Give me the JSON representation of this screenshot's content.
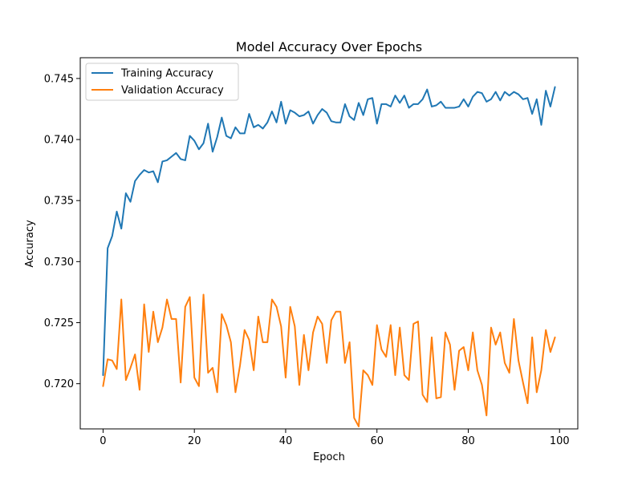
{
  "chart_data": {
    "type": "line",
    "title": "Model Accuracy Over Epochs",
    "xlabel": "Epoch",
    "ylabel": "Accuracy",
    "xlim": [
      -5,
      104
    ],
    "ylim": [
      0.7163,
      0.7467
    ],
    "x_ticks": [
      0,
      20,
      40,
      60,
      80,
      100
    ],
    "y_ticks": [
      0.72,
      0.725,
      0.73,
      0.735,
      0.74,
      0.745
    ],
    "y_tick_labels": [
      "0.720",
      "0.725",
      "0.730",
      "0.735",
      "0.740",
      "0.745"
    ],
    "grid": false,
    "legend_position": "upper-left",
    "x": [
      0,
      1,
      2,
      3,
      4,
      5,
      6,
      7,
      8,
      9,
      10,
      11,
      12,
      13,
      14,
      15,
      16,
      17,
      18,
      19,
      20,
      21,
      22,
      23,
      24,
      25,
      26,
      27,
      28,
      29,
      30,
      31,
      32,
      33,
      34,
      35,
      36,
      37,
      38,
      39,
      40,
      41,
      42,
      43,
      44,
      45,
      46,
      47,
      48,
      49,
      50,
      51,
      52,
      53,
      54,
      55,
      56,
      57,
      58,
      59,
      60,
      61,
      62,
      63,
      64,
      65,
      66,
      67,
      68,
      69,
      70,
      71,
      72,
      73,
      74,
      75,
      76,
      77,
      78,
      79,
      80,
      81,
      82,
      83,
      84,
      85,
      86,
      87,
      88,
      89,
      90,
      91,
      92,
      93,
      94,
      95,
      96,
      97,
      98,
      99
    ],
    "series": [
      {
        "name": "Training Accuracy",
        "color": "#1f77b4",
        "values": [
          0.7207,
          0.7311,
          0.7321,
          0.7341,
          0.7327,
          0.7356,
          0.7349,
          0.7366,
          0.7371,
          0.7375,
          0.7373,
          0.7374,
          0.7365,
          0.7382,
          0.7383,
          0.7386,
          0.7389,
          0.7384,
          0.7383,
          0.7403,
          0.7399,
          0.7392,
          0.7397,
          0.7413,
          0.739,
          0.7402,
          0.7418,
          0.7403,
          0.7401,
          0.741,
          0.7405,
          0.7405,
          0.7421,
          0.741,
          0.7412,
          0.7409,
          0.7414,
          0.7423,
          0.7414,
          0.7431,
          0.7413,
          0.7424,
          0.7422,
          0.7419,
          0.742,
          0.7423,
          0.7413,
          0.742,
          0.7425,
          0.7422,
          0.7415,
          0.7414,
          0.7414,
          0.7429,
          0.7419,
          0.7416,
          0.743,
          0.742,
          0.7433,
          0.7434,
          0.7413,
          0.7429,
          0.7429,
          0.7427,
          0.7436,
          0.743,
          0.7436,
          0.7426,
          0.7429,
          0.7429,
          0.7433,
          0.7441,
          0.7427,
          0.7428,
          0.7431,
          0.7426,
          0.7426,
          0.7426,
          0.7427,
          0.7433,
          0.7427,
          0.7435,
          0.7439,
          0.7438,
          0.7431,
          0.7433,
          0.7439,
          0.7432,
          0.7439,
          0.7436,
          0.7439,
          0.7437,
          0.7433,
          0.7434,
          0.7421,
          0.7433,
          0.7412,
          0.744,
          0.7427,
          0.7443
        ]
      },
      {
        "name": "Validation Accuracy",
        "color": "#ff7f0e",
        "values": [
          0.7198,
          0.722,
          0.7219,
          0.7212,
          0.7269,
          0.7203,
          0.7213,
          0.7224,
          0.7195,
          0.7265,
          0.7226,
          0.7259,
          0.7234,
          0.7246,
          0.7269,
          0.7253,
          0.7253,
          0.7201,
          0.7263,
          0.7271,
          0.7205,
          0.7198,
          0.7273,
          0.7209,
          0.7213,
          0.7193,
          0.7257,
          0.7248,
          0.7234,
          0.7193,
          0.7215,
          0.7244,
          0.7236,
          0.7211,
          0.7255,
          0.7234,
          0.7234,
          0.7269,
          0.7263,
          0.7247,
          0.7205,
          0.7263,
          0.7247,
          0.7199,
          0.724,
          0.7211,
          0.7242,
          0.7255,
          0.7249,
          0.7217,
          0.7252,
          0.7259,
          0.7259,
          0.7217,
          0.7234,
          0.7172,
          0.7165,
          0.7211,
          0.7207,
          0.7199,
          0.7248,
          0.7228,
          0.7222,
          0.7248,
          0.7207,
          0.7246,
          0.7207,
          0.7203,
          0.7249,
          0.7251,
          0.7191,
          0.7185,
          0.7238,
          0.7188,
          0.7189,
          0.7242,
          0.7232,
          0.7195,
          0.7227,
          0.723,
          0.7211,
          0.7242,
          0.7211,
          0.7199,
          0.7174,
          0.7246,
          0.7232,
          0.7242,
          0.7217,
          0.7209,
          0.7253,
          0.7219,
          0.7201,
          0.7184,
          0.7238,
          0.7193,
          0.7211,
          0.7244,
          0.7226,
          0.7238
        ]
      }
    ]
  }
}
